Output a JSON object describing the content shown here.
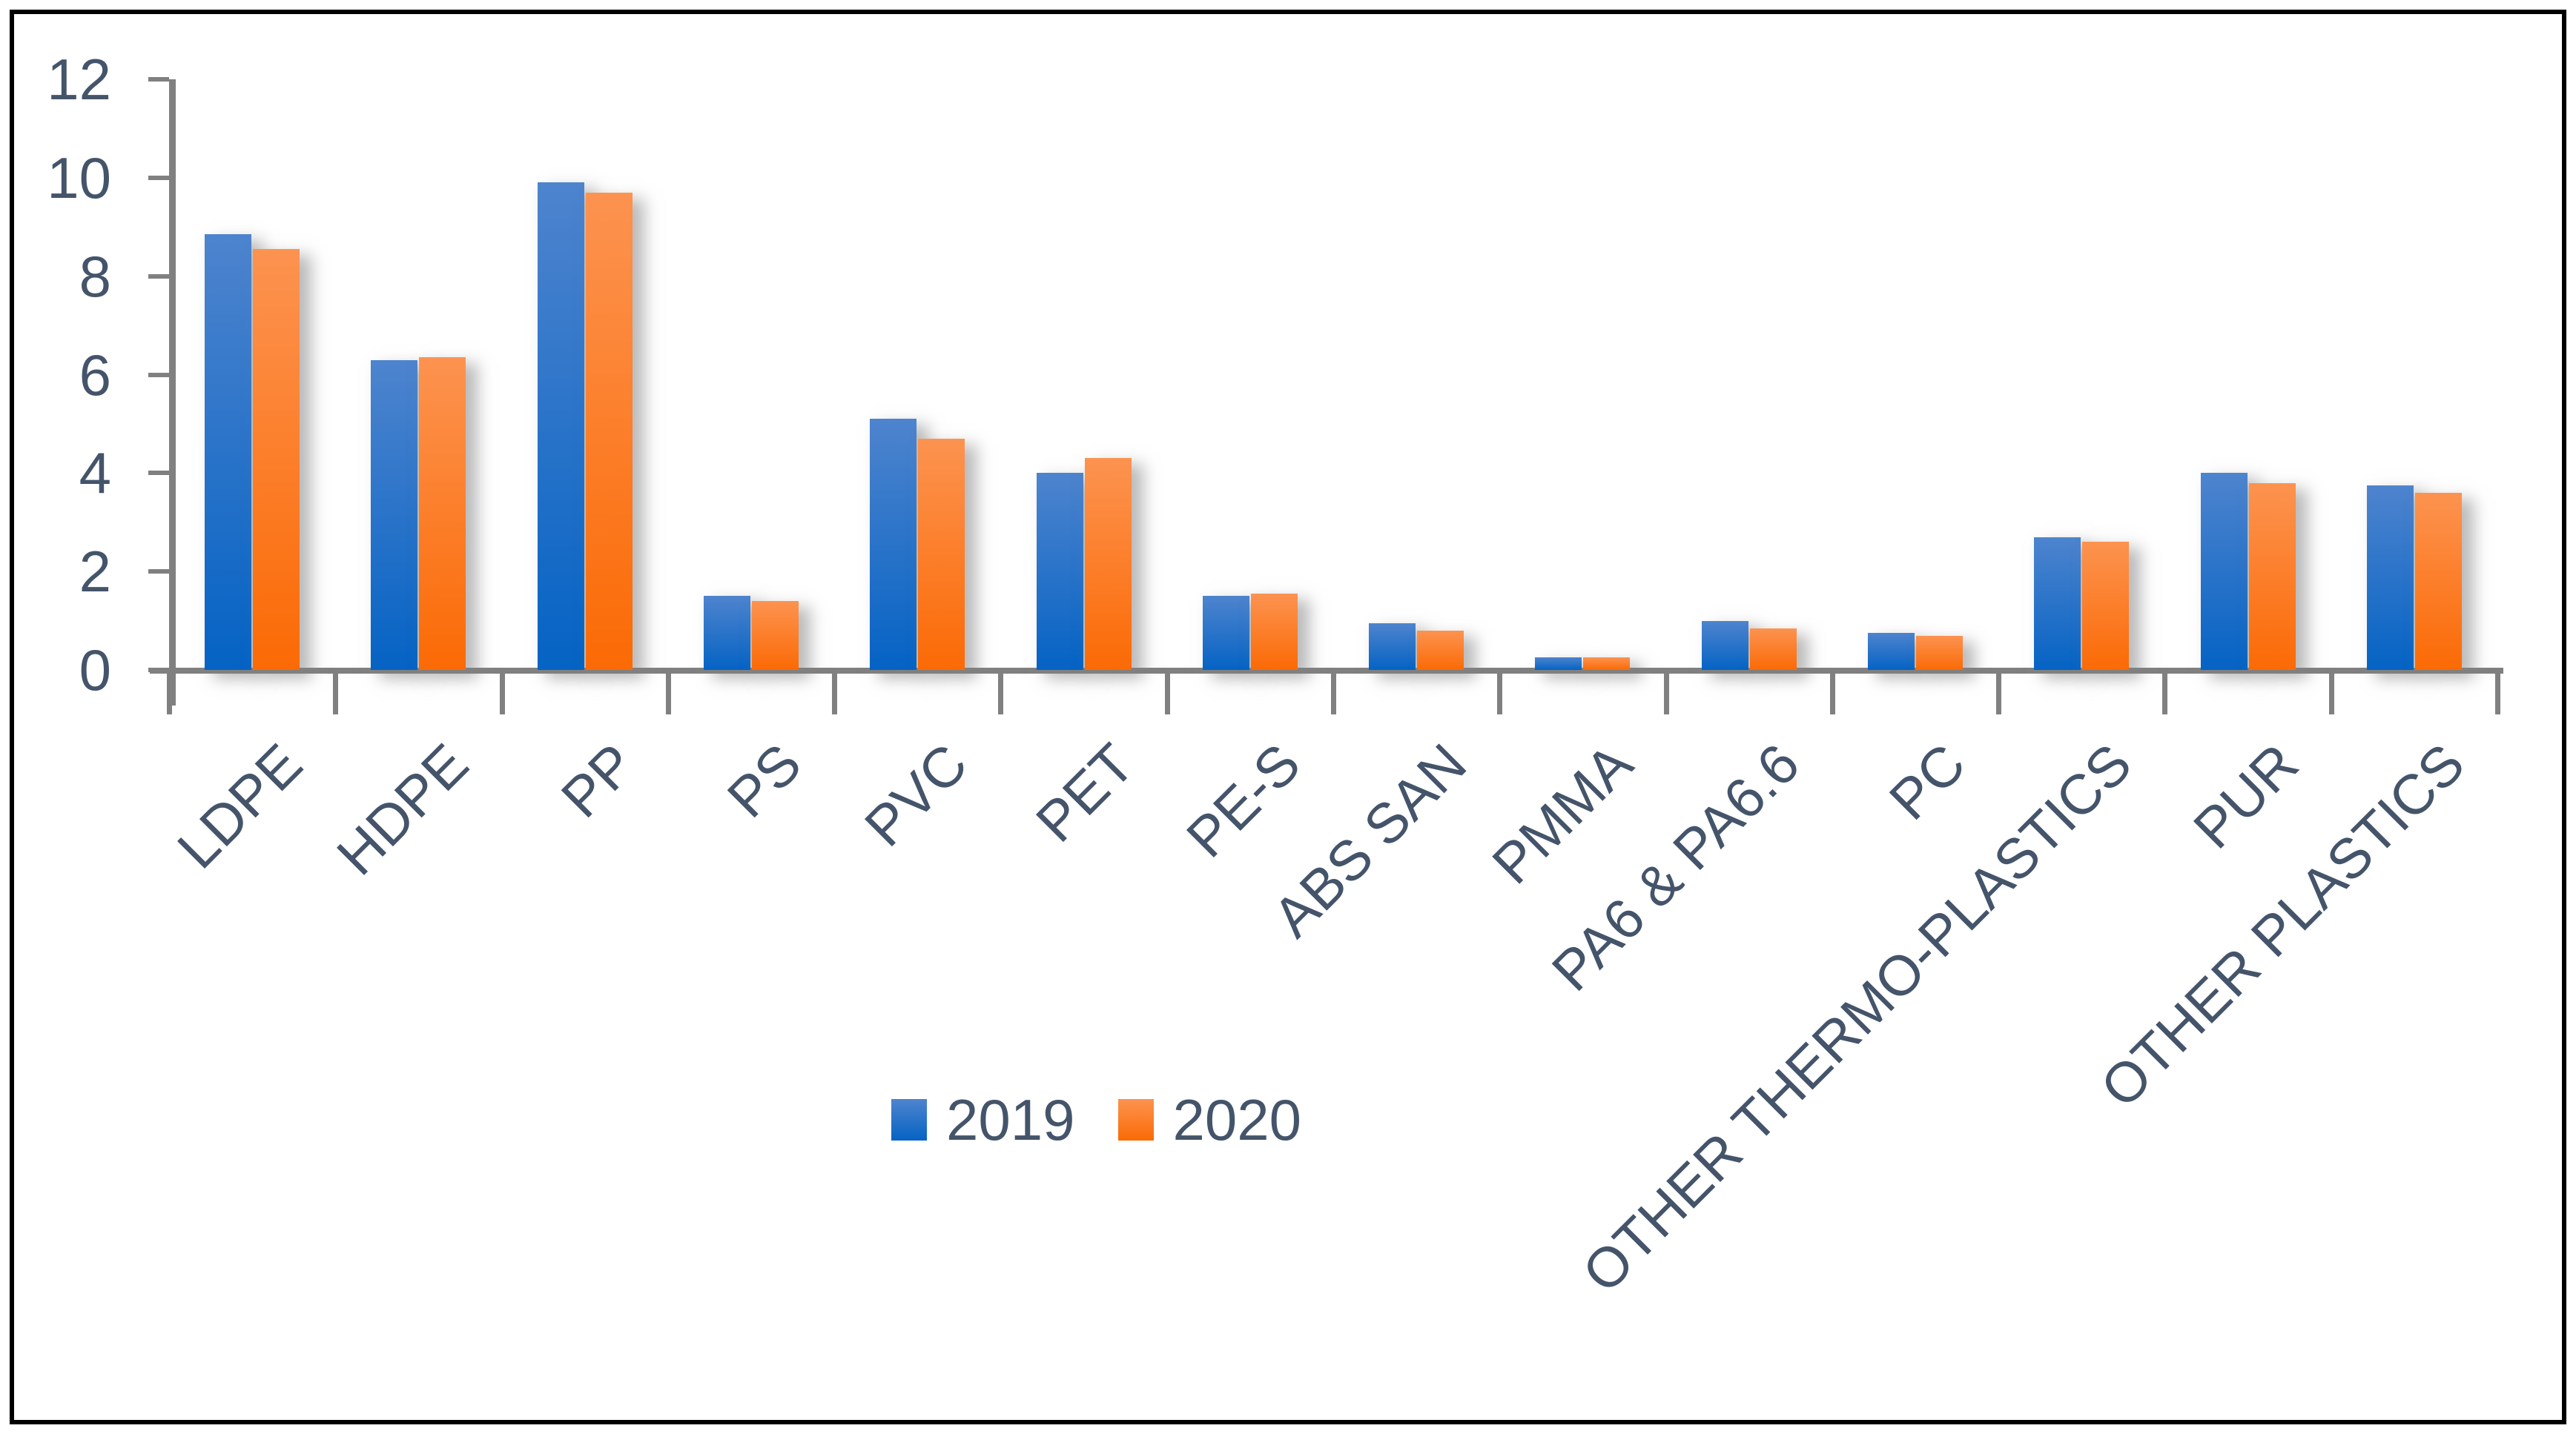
{
  "chart_data": {
    "type": "bar",
    "title": "",
    "xlabel": "",
    "ylabel": "",
    "grid": false,
    "legend_position": "bottom-center",
    "axis_color": "#808080",
    "text_color": "#44546A",
    "categories": [
      "LDPE",
      "HDPE",
      "PP",
      "PS",
      "PVC",
      "PET",
      "PE-S",
      "ABS SAN",
      "PMMA",
      "PA6 & PA6.6",
      "PC",
      "OTHER THERMO-PLASTICS",
      "PUR",
      "OTHER PLASTICS"
    ],
    "series": [
      {
        "name": "2019",
        "color_top": "#4E84CE",
        "color_bottom": "#0563C4",
        "values": [
          8.85,
          6.3,
          9.9,
          1.5,
          5.1,
          4.0,
          1.5,
          0.95,
          0.25,
          1.0,
          0.75,
          2.7,
          4.0,
          3.75
        ]
      },
      {
        "name": "2020",
        "color_top": "#FC9350",
        "color_bottom": "#FB6A05",
        "values": [
          8.55,
          6.35,
          9.7,
          1.4,
          4.7,
          4.3,
          1.55,
          0.8,
          0.25,
          0.85,
          0.7,
          2.6,
          3.8,
          3.6
        ]
      }
    ],
    "y_axis": {
      "min": 0,
      "max": 12,
      "tick_step": 2,
      "tick_labels": [
        "0",
        "2",
        "4",
        "6",
        "8",
        "10",
        "12"
      ]
    }
  }
}
